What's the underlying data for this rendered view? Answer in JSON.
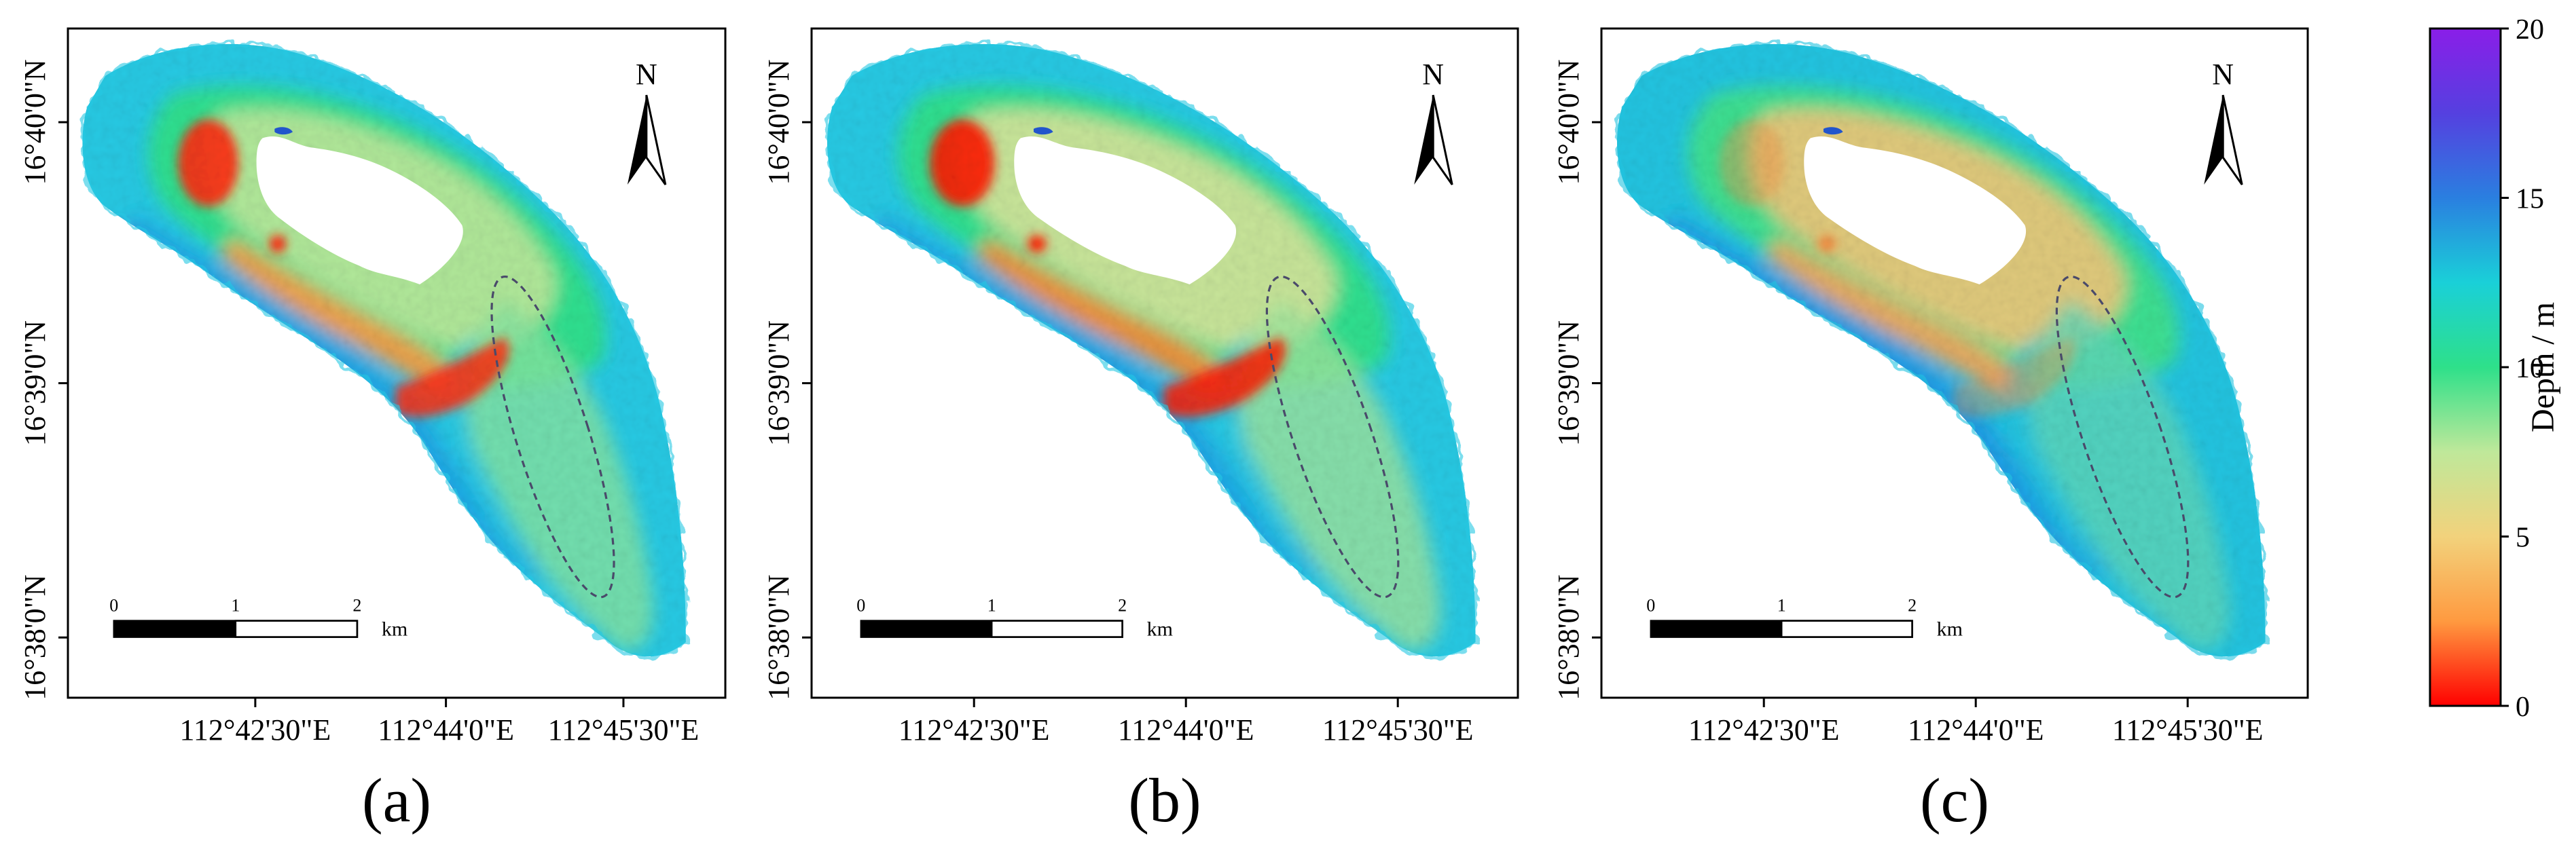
{
  "panels": [
    {
      "id": "a",
      "caption": "(a)",
      "variant": "a"
    },
    {
      "id": "b",
      "caption": "(b)",
      "variant": "b"
    },
    {
      "id": "c",
      "caption": "(c)",
      "variant": "c"
    }
  ],
  "axes": {
    "x_ticks": [
      "112°42'30\"E",
      "112°44'0\"E",
      "112°45'30\"E"
    ],
    "y_ticks": [
      "16°40'0\"N",
      "16°39'0\"N",
      "16°38'0\"N"
    ]
  },
  "north_arrow": {
    "label": "N"
  },
  "scale_bar": {
    "ticks": [
      "0",
      "1",
      "2"
    ],
    "unit": "km"
  },
  "colorbar": {
    "label": "Depth / m",
    "min": 0,
    "max": 20,
    "ticks": [
      "0",
      "5",
      "10",
      "15",
      "20"
    ],
    "tick_values": [
      0,
      5,
      10,
      15,
      20
    ],
    "stops": [
      "#ff0000",
      "#ff9a40",
      "#f2d27c",
      "#bfe89a",
      "#2ee08a",
      "#1ad0d8",
      "#2a7fe0",
      "#5540e0",
      "#8a1ee8"
    ]
  },
  "annotation": {
    "shape": "dashed-ellipse",
    "color": "#4a4a6a"
  }
}
